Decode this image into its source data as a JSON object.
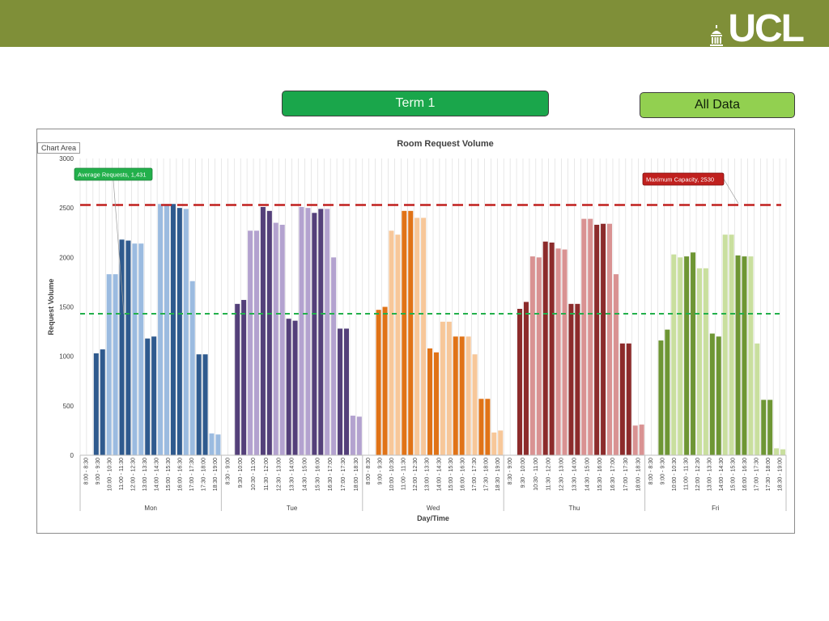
{
  "header": {
    "logo_text": "UCL",
    "band_color": "#7f8f38"
  },
  "tabs": {
    "term_label": "Term 1",
    "term_color": "#1aa64b",
    "all_label": "All Data",
    "all_color": "#92d050"
  },
  "chart_area_tag": "Chart Area",
  "chart_data": {
    "type": "bar",
    "title": "Room Request Volume",
    "xlabel": "Day/Time",
    "ylabel": "Request Volume",
    "ylim": [
      0,
      3000
    ],
    "yticks": [
      0,
      500,
      1000,
      1500,
      2000,
      2500,
      3000
    ],
    "grid": "vertical",
    "time_slots": [
      "8:00 - 8:30",
      "8:30 - 9:00",
      "9:00 - 9:30",
      "9:30 - 10:00",
      "10:00 - 10:30",
      "10:30 - 11:00",
      "11:00 - 11:30",
      "11:30 - 12:00",
      "12:00 - 12:30",
      "12:30 - 13:00",
      "13:00 - 13:30",
      "13:30 - 14:00",
      "14:00 - 14:30",
      "14:30 - 15:00",
      "15:00 - 15:30",
      "15:30 - 16:00",
      "16:00 - 16:30",
      "16:30 - 17:00",
      "17:00 - 17:30",
      "17:30 - 18:00",
      "18:00 - 18:30",
      "18:30 - 19:00"
    ],
    "days": [
      {
        "name": "Mon",
        "dark": "#2f5a8e",
        "light": "#9bbbe0",
        "tick_labels": [
          "8:00 - 8:30",
          "9:00 - 9:30",
          "10:00 - 10:30",
          "11:00 - 11:30",
          "12:00 - 12:30",
          "13:00 - 13:30",
          "14:00 - 14:30",
          "15:00 - 15:30",
          "16:00 - 16:30",
          "17:00 - 17:30",
          "17:30 - 18:00",
          "18:30 - 19:00"
        ],
        "values": [
          0,
          0,
          1030,
          1070,
          1830,
          1830,
          2180,
          2170,
          2140,
          2140,
          1180,
          1200,
          2540,
          2540,
          2540,
          2500,
          2490,
          1760,
          1020,
          1020,
          220,
          210
        ],
        "shade": [
          "d",
          "d",
          "d",
          "d",
          "l",
          "l",
          "d",
          "d",
          "l",
          "l",
          "d",
          "d",
          "l",
          "l",
          "d",
          "d",
          "l",
          "l",
          "d",
          "d",
          "l",
          "l"
        ]
      },
      {
        "name": "Tue",
        "dark": "#54407a",
        "light": "#b3a2cf",
        "tick_labels": [
          "8:30 - 9:00",
          "9:30 - 10:00",
          "10:30 - 11:00",
          "11:30 - 12:00",
          "12:30 - 13:00",
          "13:30 - 14:00",
          "14:30 - 15:00",
          "15:30 - 16:00",
          "16:30 - 17:00",
          "17:00 - 17:30",
          "18:00 - 18:30"
        ],
        "values": [
          0,
          0,
          1530,
          1570,
          2270,
          2270,
          2510,
          2470,
          2350,
          2330,
          1380,
          1360,
          2510,
          2500,
          2450,
          2490,
          2490,
          2000,
          1280,
          1280,
          400,
          390
        ],
        "shade": [
          "d",
          "d",
          "d",
          "d",
          "l",
          "l",
          "d",
          "d",
          "l",
          "l",
          "d",
          "d",
          "l",
          "l",
          "d",
          "d",
          "l",
          "l",
          "d",
          "d",
          "l",
          "l"
        ]
      },
      {
        "name": "Wed",
        "dark": "#e07317",
        "light": "#f7c799",
        "tick_labels": [
          "8:00 - 8:30",
          "9:00 - 9:30",
          "10:00 - 10:30",
          "11:00 - 11:30",
          "12:00 - 12:30",
          "13:00 - 13:30",
          "14:00 - 14:30",
          "15:00 - 15:30",
          "16:00 - 16:30",
          "17:00 - 17:30",
          "17:30 - 18:00",
          "18:30 - 19:00"
        ],
        "values": [
          0,
          0,
          1470,
          1500,
          2270,
          2230,
          2470,
          2470,
          2400,
          2400,
          1080,
          1040,
          1350,
          1350,
          1200,
          1200,
          1200,
          1020,
          570,
          570,
          230,
          250
        ],
        "shade": [
          "d",
          "d",
          "d",
          "d",
          "l",
          "l",
          "d",
          "d",
          "l",
          "l",
          "d",
          "d",
          "l",
          "l",
          "d",
          "d",
          "l",
          "l",
          "d",
          "d",
          "l",
          "l"
        ]
      },
      {
        "name": "Thu",
        "dark": "#8c2b2b",
        "light": "#d99292",
        "tick_labels": [
          "8:30 - 9:00",
          "9:30 - 10:00",
          "10:30 - 11:00",
          "11:30 - 12:00",
          "12:30 - 13:00",
          "13:30 - 14:00",
          "14:30 - 15:00",
          "15:30 - 16:00",
          "16:30 - 17:00",
          "17:00 - 17:30",
          "18:00 - 18:30"
        ],
        "values": [
          0,
          0,
          1480,
          1550,
          2010,
          2000,
          2160,
          2150,
          2090,
          2080,
          1530,
          1530,
          2390,
          2390,
          2330,
          2340,
          2340,
          1830,
          1130,
          1130,
          300,
          310
        ],
        "shade": [
          "d",
          "d",
          "d",
          "d",
          "l",
          "l",
          "d",
          "d",
          "l",
          "l",
          "d",
          "d",
          "l",
          "l",
          "d",
          "d",
          "l",
          "l",
          "d",
          "d",
          "l",
          "l"
        ]
      },
      {
        "name": "Fri",
        "dark": "#6e9634",
        "light": "#c9df9e",
        "tick_labels": [
          "8:00 - 8:30",
          "9:00 - 9:30",
          "10:00 - 10:30",
          "11:00 - 11:30",
          "12:00 - 12:30",
          "13:00 - 13:30",
          "14:00 - 14:30",
          "15:00 - 15:30",
          "16:00 - 16:30",
          "17:00 - 17:30",
          "17:30 - 18:00",
          "18:30 - 19:00"
        ],
        "values": [
          0,
          0,
          1160,
          1270,
          2030,
          2000,
          2010,
          2050,
          1890,
          1890,
          1230,
          1200,
          2230,
          2230,
          2020,
          2010,
          2010,
          1130,
          560,
          560,
          70,
          60
        ],
        "shade": [
          "d",
          "d",
          "d",
          "d",
          "l",
          "l",
          "d",
          "d",
          "l",
          "l",
          "d",
          "d",
          "l",
          "l",
          "d",
          "d",
          "l",
          "l",
          "d",
          "d",
          "l",
          "l"
        ]
      }
    ],
    "reference_lines": [
      {
        "name": "Average Requests",
        "label": "Average Requests, 1,431",
        "value": 1431,
        "color": "#22b04b",
        "callout_fill": "#22b04b"
      },
      {
        "name": "Maximum Capacity",
        "label": "Maximum Capacity, 2530",
        "value": 2530,
        "color": "#c0201e",
        "callout_fill": "#c0201e"
      }
    ]
  }
}
